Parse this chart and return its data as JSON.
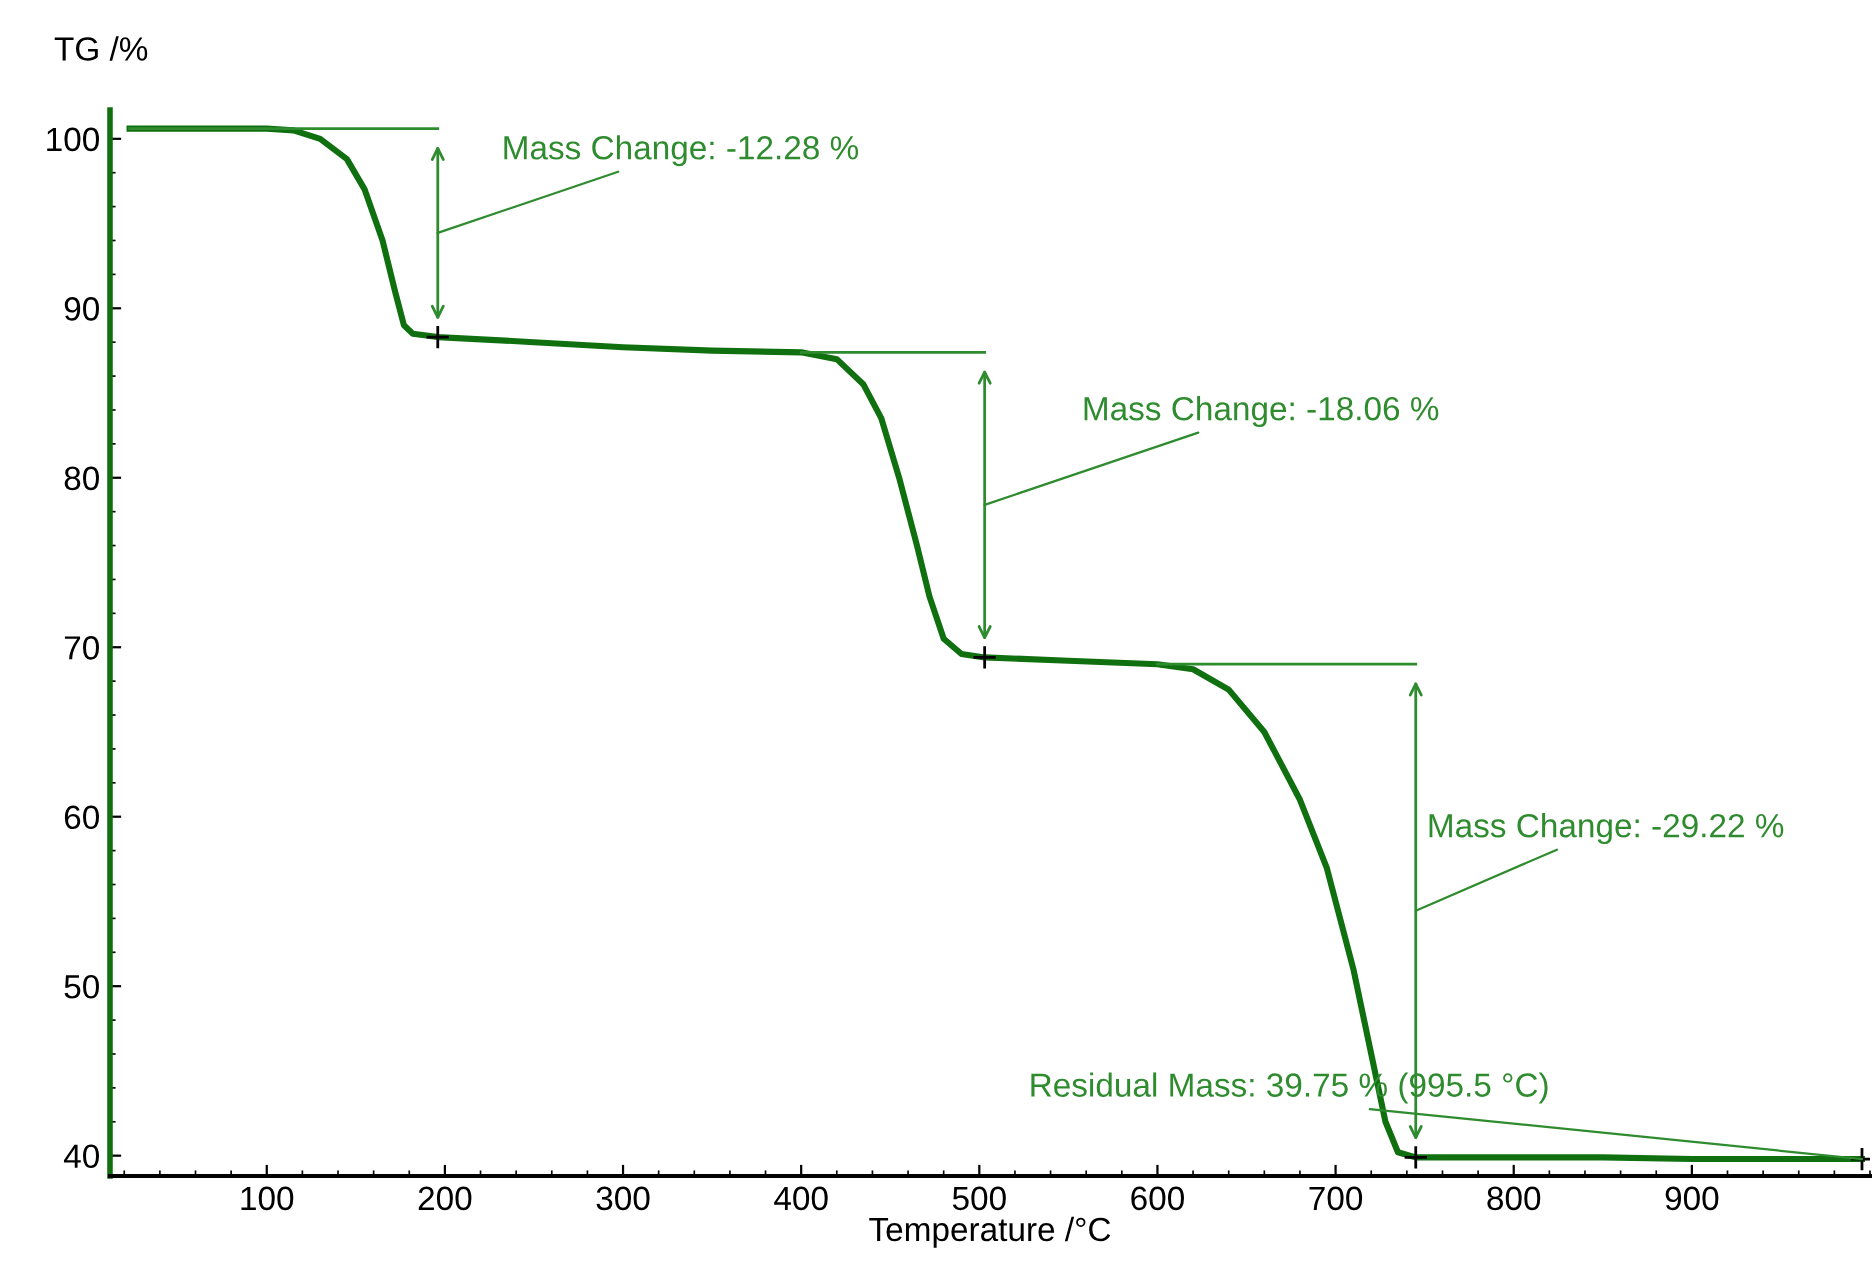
{
  "chart_data": {
    "type": "line",
    "xlabel": "Temperature /°C",
    "ylabel": "TG /%",
    "xlim": [
      12,
      1000
    ],
    "ylim": [
      38.8,
      101.7
    ],
    "xticks": [
      100,
      200,
      300,
      400,
      500,
      600,
      700,
      800,
      900
    ],
    "yticks": [
      40,
      50,
      60,
      70,
      80,
      90,
      100
    ],
    "grid": false,
    "legend": false,
    "line_style": "solid",
    "marker": "none",
    "series": [
      {
        "color": "#107010",
        "x": [
          23,
          100,
          115,
          130,
          145,
          155,
          165,
          172,
          177,
          182,
          196,
          250,
          300,
          350,
          400,
          420,
          435,
          445,
          455,
          465,
          472,
          480,
          490,
          503,
          550,
          600,
          620,
          640,
          660,
          680,
          695,
          710,
          720,
          728,
          735,
          745,
          800,
          850,
          900,
          950,
          995.5
        ],
        "values": [
          100.6,
          100.6,
          100.5,
          100.0,
          98.8,
          97,
          94,
          91,
          89,
          88.5,
          88.3,
          88.0,
          87.7,
          87.5,
          87.4,
          87.0,
          85.5,
          83.5,
          80,
          76,
          73,
          70.5,
          69.6,
          69.4,
          69.2,
          69.0,
          68.7,
          67.5,
          65,
          61,
          57,
          51,
          46,
          42,
          40.2,
          39.9,
          39.9,
          39.9,
          39.8,
          39.8,
          39.8
        ]
      },
      {
        "color": "#2e8b2e",
        "x": [
          23,
          196
        ],
        "values": [
          100.6,
          100.6
        ]
      },
      {
        "color": "#2e8b2e",
        "x": [
          400,
          503
        ],
        "values": [
          87.4,
          87.4
        ]
      },
      {
        "color": "#2e8b2e",
        "x": [
          600,
          745
        ],
        "values": [
          69.0,
          69.0
        ]
      }
    ],
    "annotations": [
      "Mass Change: -12.28 %",
      "Mass Change: -18.06 %",
      "Mass Change: -29.22 %",
      {
        "text": "Residual Mass: 39.75 % (995.5 °C)",
        "x": 995.5,
        "y": 39.8
      }
    ]
  }
}
